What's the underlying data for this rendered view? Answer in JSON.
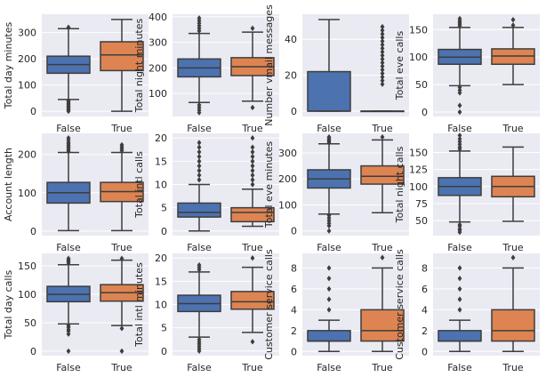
{
  "chart_data": [
    {
      "type": "box",
      "ylabel": "Total day minutes",
      "categories": [
        "False",
        "True"
      ],
      "ylim": [
        -20,
        370
      ],
      "yticks": [
        0,
        100,
        200,
        300
      ],
      "boxes": [
        {
          "category": "False",
          "whisker_low": 45,
          "q1": 145,
          "median": 178,
          "q3": 210,
          "whisker_high": 315,
          "outliers": [
            0,
            5,
            10,
            15,
            20,
            25,
            30,
            35,
            40,
            320
          ]
        },
        {
          "category": "True",
          "whisker_low": 0,
          "q1": 155,
          "median": 215,
          "q3": 265,
          "whisker_high": 350,
          "outliers": []
        }
      ]
    },
    {
      "type": "box",
      "ylabel": "Total night minutes",
      "categories": [
        "False",
        "True"
      ],
      "ylim": [
        10,
        410
      ],
      "yticks": [
        100,
        200,
        300,
        400
      ],
      "boxes": [
        {
          "category": "False",
          "whisker_low": 65,
          "q1": 165,
          "median": 200,
          "q3": 235,
          "whisker_high": 335,
          "outliers": [
            25,
            35,
            45,
            55,
            345,
            355,
            365,
            375,
            385,
            395
          ]
        },
        {
          "category": "True",
          "whisker_low": 70,
          "q1": 170,
          "median": 205,
          "q3": 240,
          "whisker_high": 340,
          "outliers": [
            45,
            355
          ]
        }
      ]
    },
    {
      "type": "box",
      "ylabel": "Number vmail messages",
      "categories": [
        "False",
        "True"
      ],
      "ylim": [
        -3,
        54
      ],
      "yticks": [
        0,
        20,
        40
      ],
      "boxes": [
        {
          "category": "False",
          "whisker_low": 0,
          "q1": 0,
          "median": 0,
          "q3": 22,
          "whisker_high": 51,
          "outliers": []
        },
        {
          "category": "True",
          "whisker_low": 0,
          "q1": 0,
          "median": 0,
          "q3": 0,
          "whisker_high": 0,
          "outliers": [
            15,
            17,
            19,
            21,
            23,
            25,
            27,
            29,
            31,
            33,
            35,
            37,
            39,
            41,
            43,
            45,
            47
          ]
        }
      ]
    },
    {
      "type": "box",
      "ylabel": "Total eve calls",
      "categories": [
        "False",
        "True"
      ],
      "ylim": [
        -8,
        178
      ],
      "yticks": [
        0,
        50,
        100,
        150
      ],
      "boxes": [
        {
          "category": "False",
          "whisker_low": 48,
          "q1": 87,
          "median": 100,
          "q3": 114,
          "whisker_high": 154,
          "outliers": [
            0,
            12,
            35,
            40,
            45,
            157,
            160,
            163,
            166,
            170
          ]
        },
        {
          "category": "True",
          "whisker_low": 50,
          "q1": 87,
          "median": 102,
          "q3": 115,
          "whisker_high": 154,
          "outliers": [
            158,
            168
          ]
        }
      ]
    },
    {
      "type": "box",
      "ylabel": "Account length",
      "categories": [
        "False",
        "True"
      ],
      "ylim": [
        -12,
        255
      ],
      "yticks": [
        0,
        100,
        200
      ],
      "boxes": [
        {
          "category": "False",
          "whisker_low": 1,
          "q1": 73,
          "median": 100,
          "q3": 127,
          "whisker_high": 205,
          "outliers": [
            208,
            212,
            216,
            220,
            224,
            228,
            232,
            238,
            243
          ]
        },
        {
          "category": "True",
          "whisker_low": 1,
          "q1": 77,
          "median": 103,
          "q3": 127,
          "whisker_high": 205,
          "outliers": [
            210,
            215,
            220,
            225
          ]
        }
      ]
    },
    {
      "type": "box",
      "ylabel": "Total intl calls",
      "categories": [
        "False",
        "True"
      ],
      "ylim": [
        -1,
        21
      ],
      "yticks": [
        0,
        5,
        10,
        15,
        20
      ],
      "boxes": [
        {
          "category": "False",
          "whisker_low": 0,
          "q1": 3,
          "median": 4,
          "q3": 6,
          "whisker_high": 10,
          "outliers": [
            11,
            12,
            13,
            14,
            15,
            16,
            17,
            18,
            19
          ]
        },
        {
          "category": "True",
          "whisker_low": 1,
          "q1": 2,
          "median": 4,
          "q3": 5,
          "whisker_high": 9,
          "outliers": [
            10,
            11,
            12,
            13,
            14,
            15,
            16,
            17,
            18,
            20
          ]
        }
      ]
    },
    {
      "type": "box",
      "ylabel": "Total eve minutes",
      "categories": [
        "False",
        "True"
      ],
      "ylim": [
        -18,
        375
      ],
      "yticks": [
        0,
        100,
        200,
        300
      ],
      "boxes": [
        {
          "category": "False",
          "whisker_low": 65,
          "q1": 165,
          "median": 200,
          "q3": 235,
          "whisker_high": 335,
          "outliers": [
            0,
            20,
            30,
            40,
            50,
            60,
            340,
            345,
            350,
            355,
            361
          ]
        },
        {
          "category": "True",
          "whisker_low": 70,
          "q1": 180,
          "median": 210,
          "q3": 250,
          "whisker_high": 350,
          "outliers": [
            361
          ]
        }
      ]
    },
    {
      "type": "box",
      "ylabel": "Total night calls",
      "categories": [
        "False",
        "True"
      ],
      "ylim": [
        28,
        178
      ],
      "yticks": [
        50,
        75,
        100,
        125,
        150
      ],
      "boxes": [
        {
          "category": "False",
          "whisker_low": 48,
          "q1": 87,
          "median": 100,
          "q3": 113,
          "whisker_high": 152,
          "outliers": [
            33,
            36,
            38,
            42,
            44,
            155,
            158,
            162,
            166,
            170,
            175
          ]
        },
        {
          "category": "True",
          "whisker_low": 49,
          "q1": 85,
          "median": 100,
          "q3": 115,
          "whisker_high": 158,
          "outliers": []
        }
      ]
    },
    {
      "type": "box",
      "ylabel": "Total day calls",
      "categories": [
        "False",
        "True"
      ],
      "ylim": [
        -8,
        172
      ],
      "yticks": [
        0,
        50,
        100,
        150
      ],
      "boxes": [
        {
          "category": "False",
          "whisker_low": 48,
          "q1": 87,
          "median": 100,
          "q3": 114,
          "whisker_high": 152,
          "outliers": [
            0,
            30,
            35,
            38,
            42,
            45,
            155,
            158,
            160,
            163
          ]
        },
        {
          "category": "True",
          "whisker_low": 45,
          "q1": 88,
          "median": 103,
          "q3": 117,
          "whisker_high": 160,
          "outliers": [
            0,
            40,
            163
          ]
        }
      ]
    },
    {
      "type": "box",
      "ylabel": "Total intl minutes",
      "categories": [
        "False",
        "True"
      ],
      "ylim": [
        -1,
        21
      ],
      "yticks": [
        0,
        5,
        10,
        15,
        20
      ],
      "boxes": [
        {
          "category": "False",
          "whisker_low": 3,
          "q1": 8.5,
          "median": 10.2,
          "q3": 12,
          "whisker_high": 17,
          "outliers": [
            0,
            0.5,
            1,
            1.5,
            2,
            2.5,
            17.5,
            18,
            18.5
          ]
        },
        {
          "category": "True",
          "whisker_low": 4,
          "q1": 9,
          "median": 10.6,
          "q3": 12.8,
          "whisker_high": 18,
          "outliers": [
            2,
            20
          ]
        }
      ]
    },
    {
      "type": "box",
      "ylabel": "Customer service calls",
      "categories": [
        "False",
        "True"
      ],
      "ylim": [
        -0.4,
        9.4
      ],
      "yticks": [
        0,
        2,
        4,
        6,
        8
      ],
      "boxes": [
        {
          "category": "False",
          "whisker_low": 0,
          "q1": 1,
          "median": 1,
          "q3": 2,
          "whisker_high": 3,
          "outliers": [
            4,
            5,
            6,
            7,
            8
          ]
        },
        {
          "category": "True",
          "whisker_low": 0,
          "q1": 1,
          "median": 2,
          "q3": 4,
          "whisker_high": 8,
          "outliers": [
            9
          ]
        }
      ]
    },
    {
      "type": "box",
      "ylabel": "Customer service calls",
      "categories": [
        "False",
        "True"
      ],
      "ylim": [
        -0.4,
        9.4
      ],
      "yticks": [
        0,
        2,
        4,
        6,
        8
      ],
      "boxes": [
        {
          "category": "False",
          "whisker_low": 0,
          "q1": 1,
          "median": 1,
          "q3": 2,
          "whisker_high": 3,
          "outliers": [
            4,
            5,
            6,
            7,
            8
          ]
        },
        {
          "category": "True",
          "whisker_low": 0,
          "q1": 1,
          "median": 2,
          "q3": 4,
          "whisker_high": 8,
          "outliers": [
            9
          ]
        }
      ]
    }
  ],
  "style": {
    "background": "#ffffff",
    "panel_background": "#eaeaf2",
    "grid": true,
    "grid_color": "#ffffff",
    "box_colors": {
      "False": "#4c72b0",
      "True": "#dd8452"
    },
    "line_color": "#3d3d3d"
  }
}
